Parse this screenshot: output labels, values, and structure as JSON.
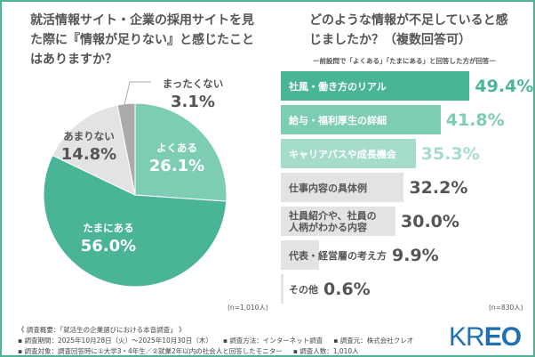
{
  "chart_data": [
    {
      "type": "pie",
      "title": "就活情報サイト・企業の採用サイトを見た際に『情報が足りない』と感じたことはありますか？",
      "slices": [
        {
          "label": "よくある",
          "value": 26.1,
          "color": "#7ccdb3"
        },
        {
          "label": "たまにある",
          "value": 56.0,
          "color": "#4ab596"
        },
        {
          "label": "あまりない",
          "value": 14.8,
          "color": "#e3e3e3"
        },
        {
          "label": "まったくない",
          "value": 3.1,
          "color": "#aaaaaa"
        }
      ],
      "note": "(n=1,010人)"
    },
    {
      "type": "bar",
      "orientation": "horizontal",
      "title": "どのような情報が不足していると感じましたか？（複数回答可）",
      "subtitle": "ー前設問で「よくある」「たまにある」と回答した方が回答ー",
      "categories": [
        "社風・働き方のリアル",
        "給与・福利厚生の詳細",
        "キャリアパスや成長機会",
        "仕事内容の具体例",
        "社員紹介や、社員の\n人柄がわかる内容",
        "代表・経営層の考え方",
        "その他"
      ],
      "values": [
        49.4,
        41.8,
        35.3,
        32.2,
        30.0,
        9.9,
        0.6
      ],
      "bar_colors": [
        "#4ab596",
        "#7ccdb3",
        "#a6dccb",
        "#e3e3e3",
        "#e3e3e3",
        "#e3e3e3",
        "#e3e3e3"
      ],
      "label_colors": [
        "#ffffff",
        "#ffffff",
        "#ffffff",
        "#555555",
        "#555555",
        "#555555",
        "#555555"
      ],
      "pct_colors": [
        "#4ab596",
        "#7ccdb3",
        "#a6dccb",
        "#555555",
        "#555555",
        "#555555",
        "#555555"
      ],
      "unit": "%",
      "note": "(n=830人)"
    }
  ],
  "footer": {
    "overview": "《 調査概要：「就活生の企業選びにおける本音調査」 》",
    "period": "▪ 調査期間：2025年10月28日（火）〜2025年10月30日（木）",
    "method": "▪ 調査方法：インターネット調査",
    "source": "▪ 調査元：株式会社クレオ",
    "target": "▪ 調査対象：調査回答時に①大学3・4年生／②就業2年以内の社会人と回答したモニター",
    "count": "▪ 調査人数：1,010人"
  },
  "logo": {
    "text1": "KR",
    "text2": "EO"
  }
}
